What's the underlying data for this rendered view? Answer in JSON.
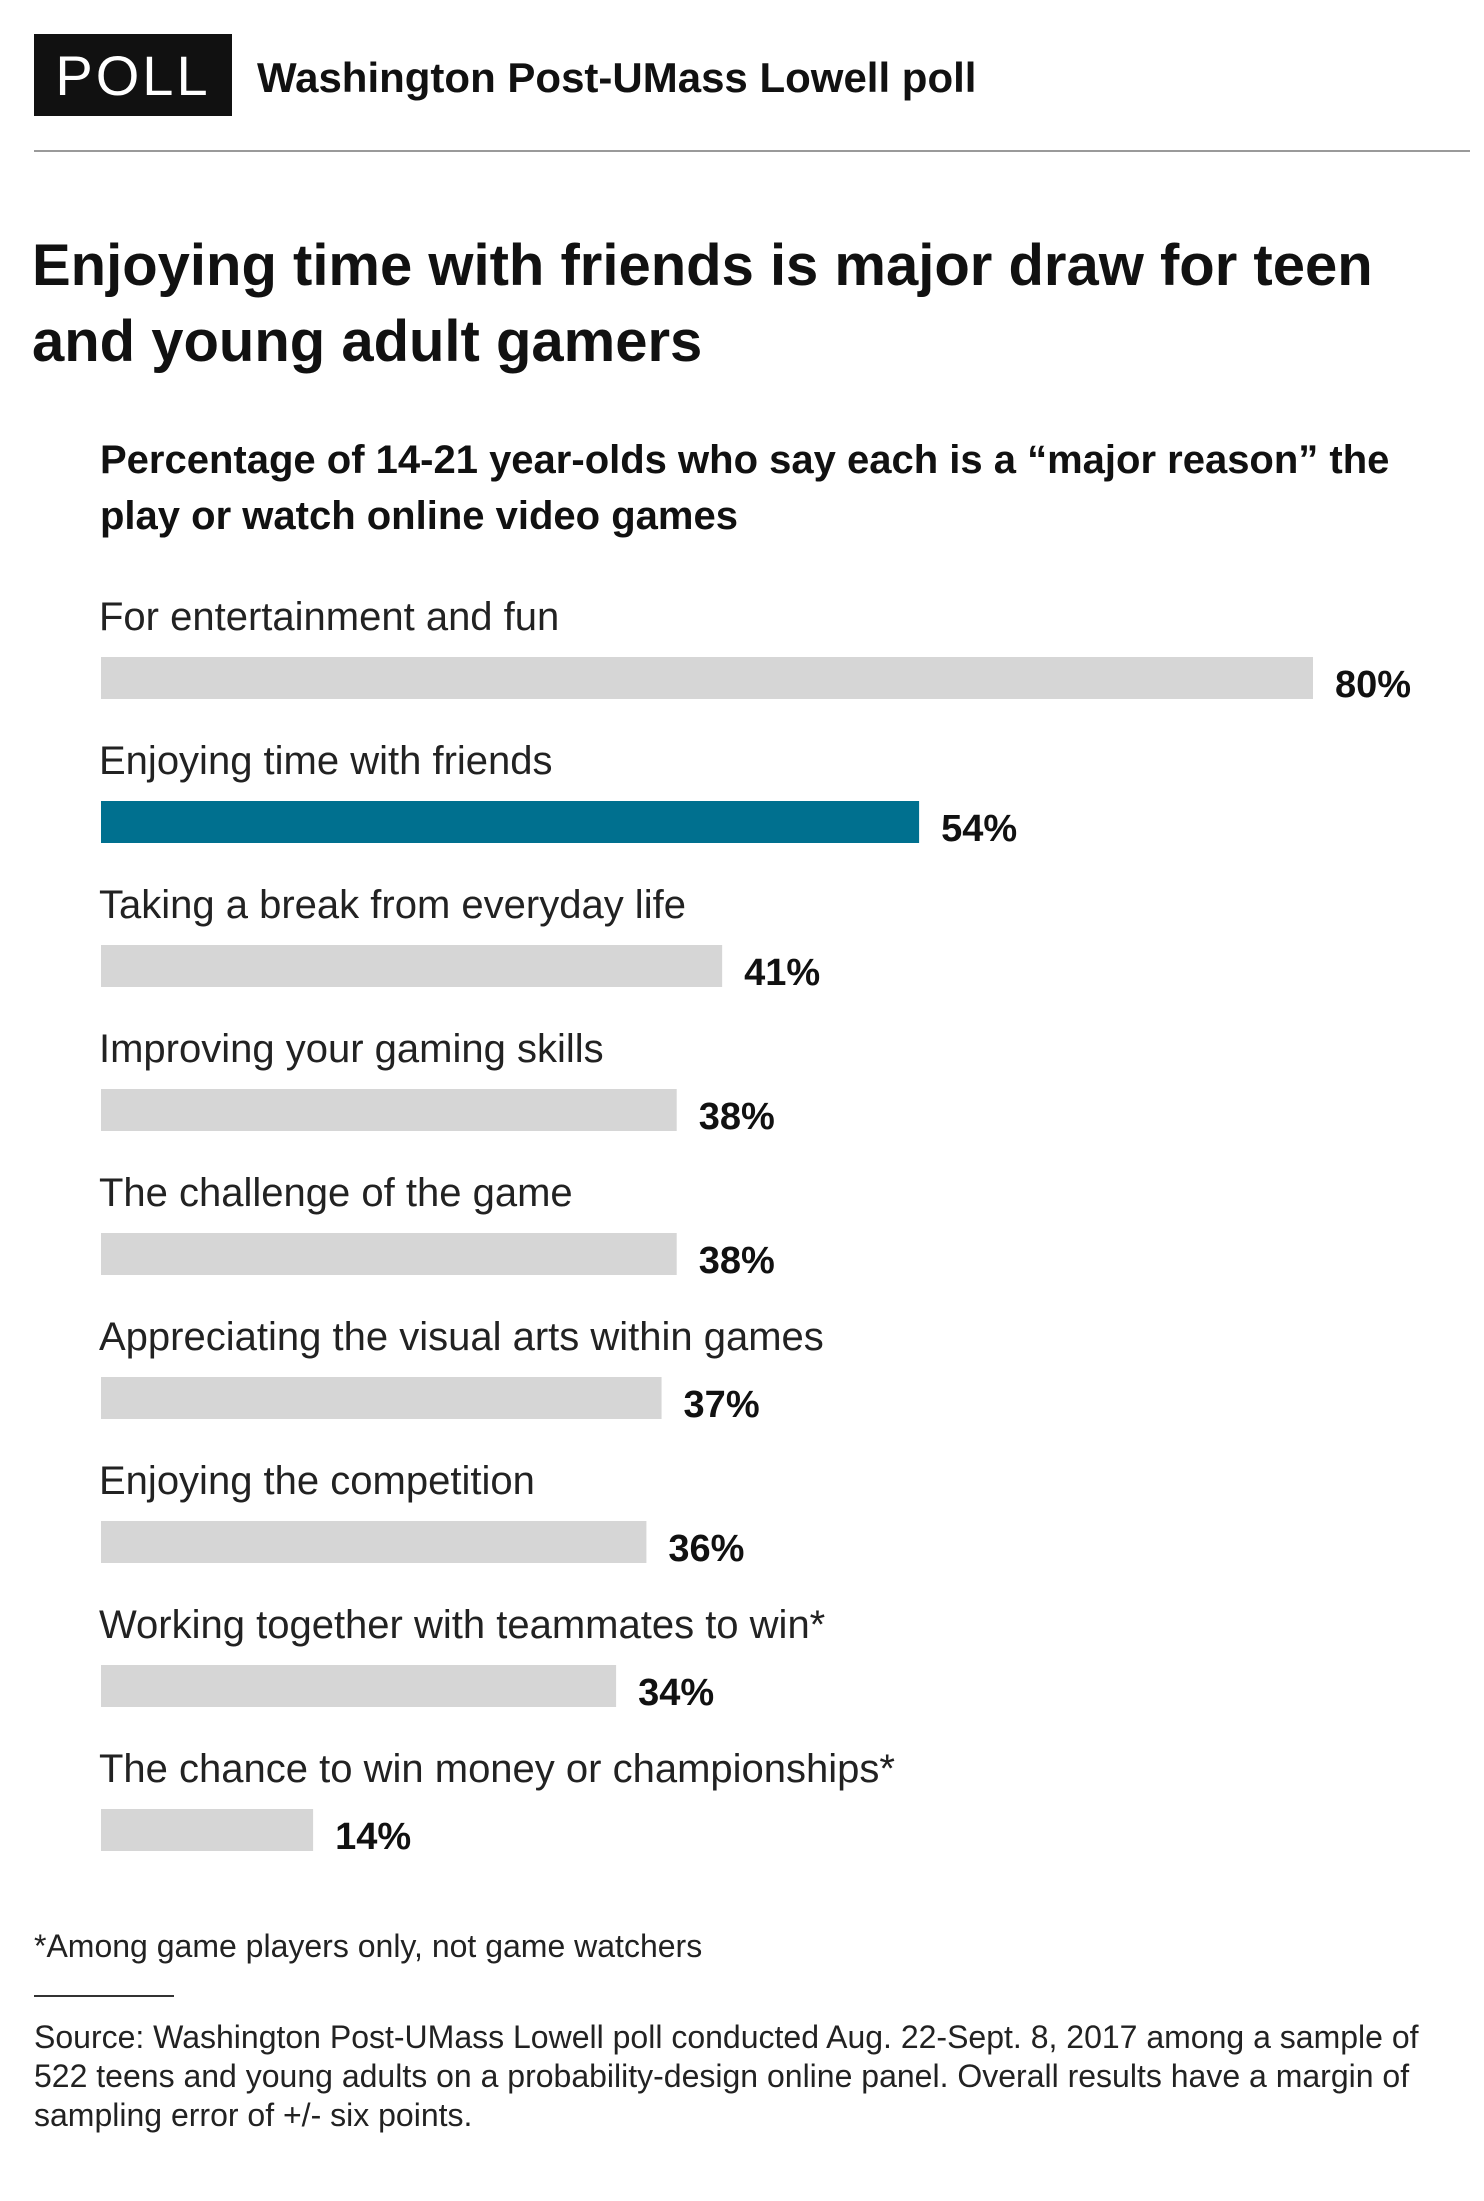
{
  "header": {
    "badge": "POLL",
    "title": "Washington Post-UMass Lowell poll"
  },
  "colors": {
    "bar_default": "#d6d6d6",
    "bar_highlight": "#00708f"
  },
  "chart_data": {
    "type": "bar",
    "orientation": "horizontal",
    "title": "Enjoying time with friends is major draw for teen and young adult gamers",
    "subtitle": "Percentage of 14-21 year-olds who say each is a “major reason” the play or watch online video games",
    "categories": [
      "For entertainment and fun",
      "Enjoying time with friends",
      "Taking a break from everyday life",
      "Improving your gaming skills",
      "The challenge of the game",
      "Appreciating the visual arts within games",
      "Enjoying the competition",
      "Working together with teammates to win*",
      "The chance to win money or championships*"
    ],
    "values": [
      80,
      54,
      41,
      38,
      38,
      37,
      36,
      34,
      14
    ],
    "value_labels": [
      "80%",
      "54%",
      "41%",
      "38%",
      "38%",
      "37%",
      "36%",
      "34%",
      "14%"
    ],
    "highlight_index": 1,
    "xlim": [
      0,
      80
    ],
    "grid": false,
    "legend": "none"
  },
  "footnote": "*Among game players only, not game watchers",
  "source": "Source: Washington Post-UMass Lowell poll conducted Aug. 22-Sept. 8, 2017 among a sample of 522 teens and young adults on a probability-design online panel. Overall results have a margin of sampling error of +/- six points."
}
